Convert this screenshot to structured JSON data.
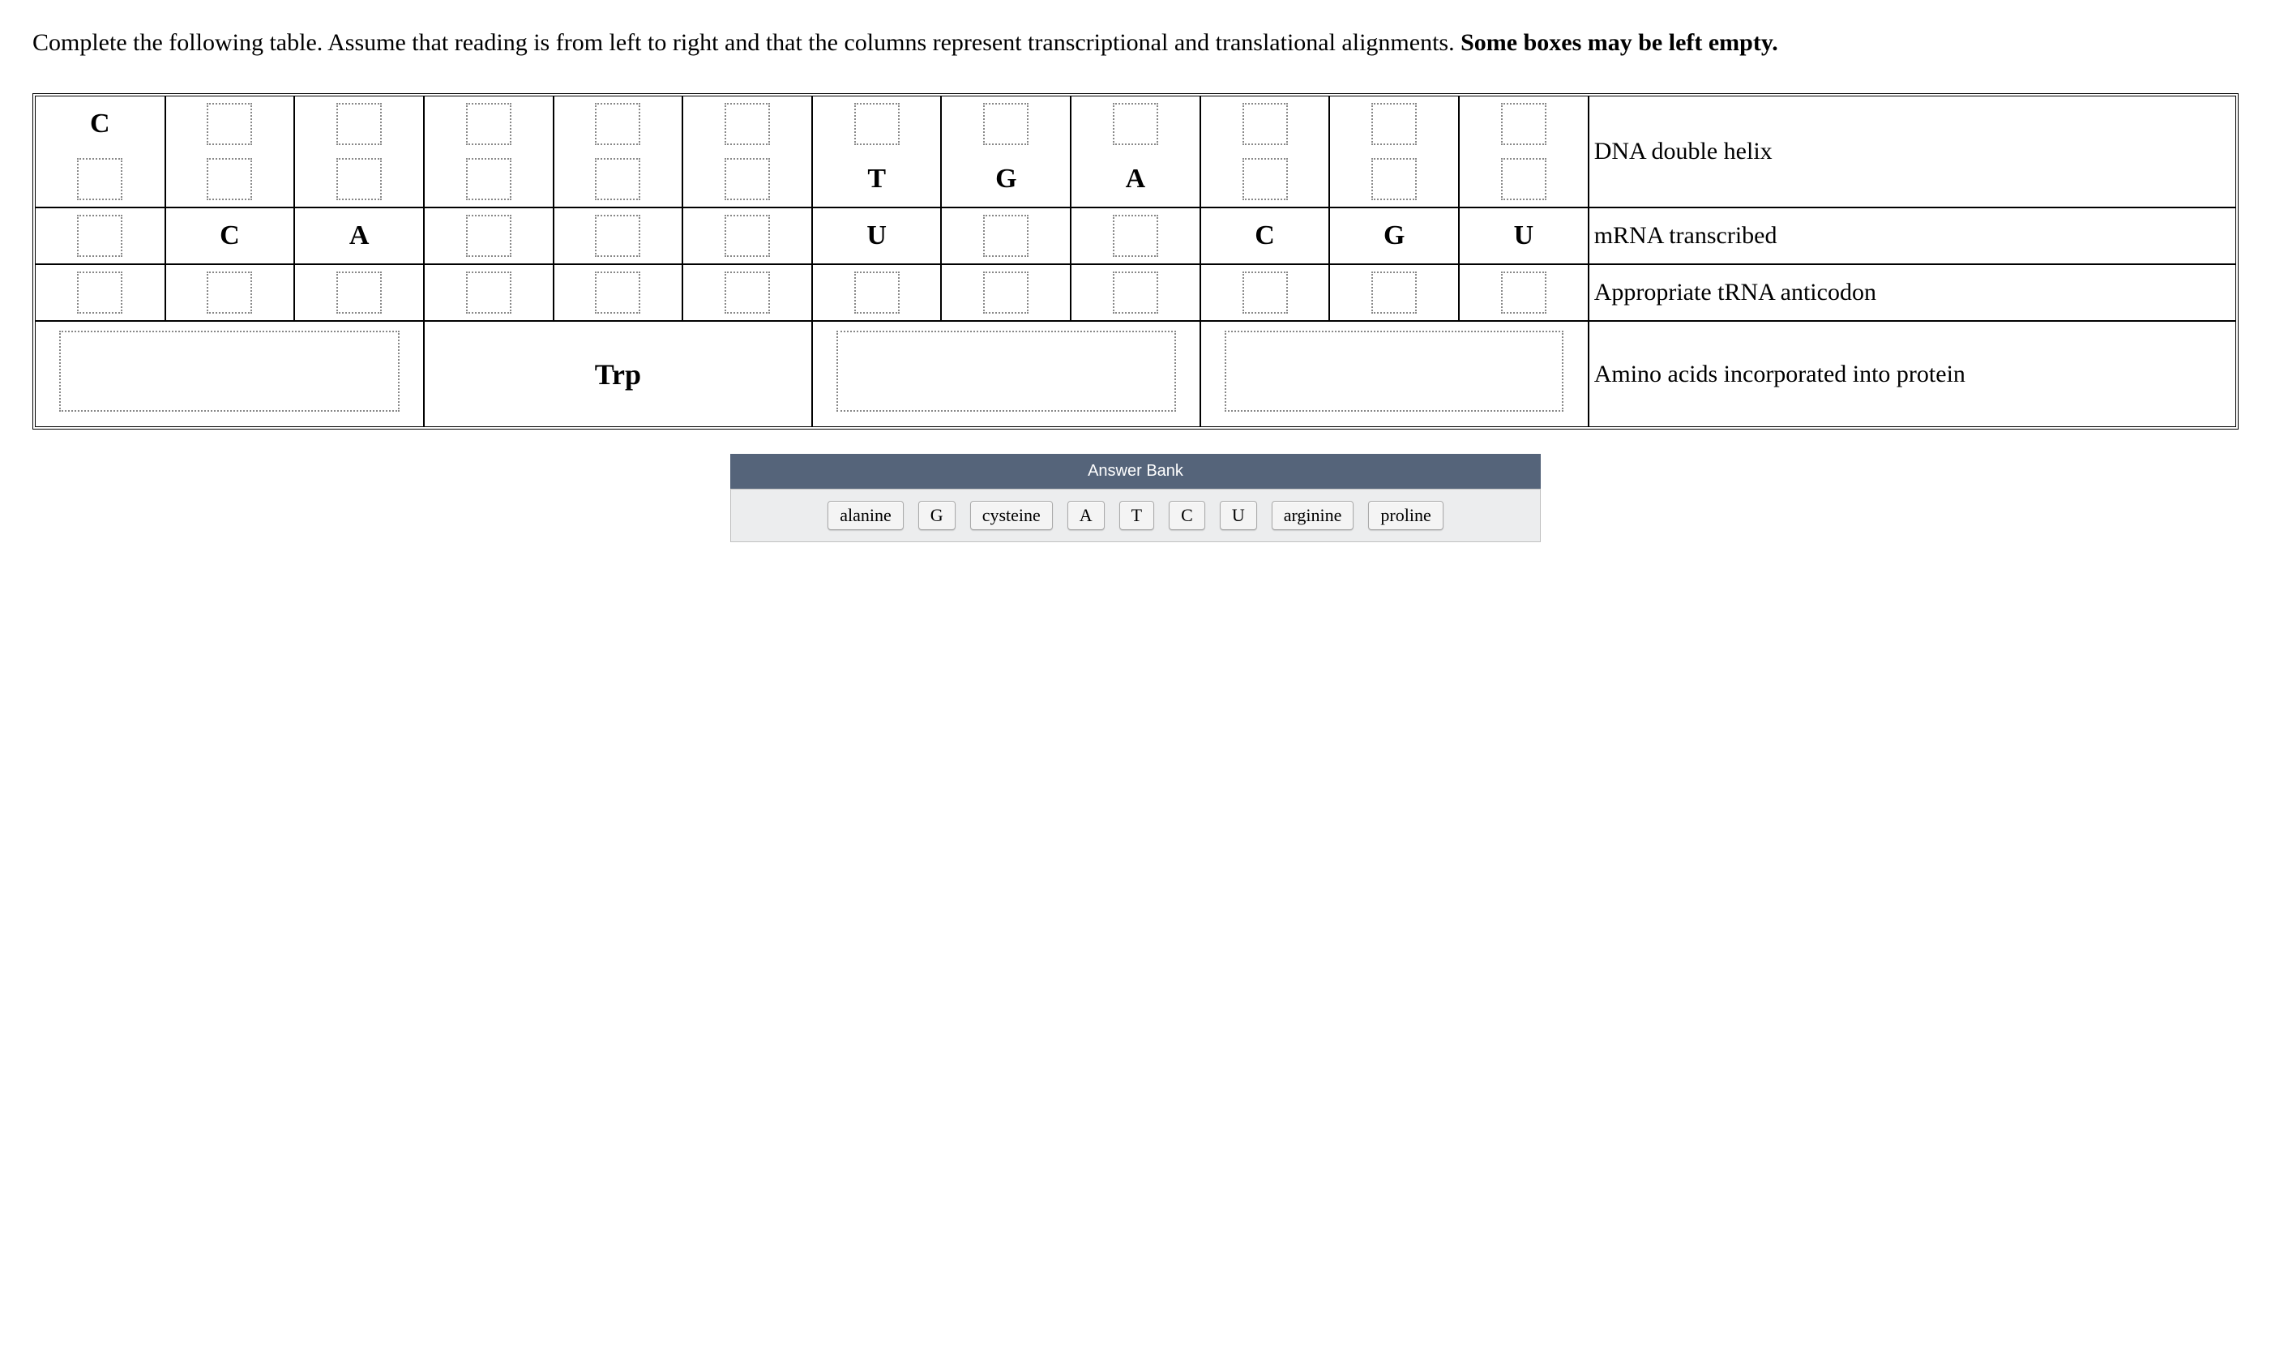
{
  "instruction": {
    "pre": "Complete the following table. Assume that reading is from left to right and that the columns represent transcriptional and translational alignments. ",
    "bold": "Some boxes may be left empty."
  },
  "rows": {
    "dna1": {
      "label": "DNA double helix",
      "cells": [
        "C",
        "",
        "",
        "",
        "",
        "",
        "",
        "",
        "",
        "",
        "",
        ""
      ],
      "fixedMask": [
        true,
        false,
        false,
        false,
        false,
        false,
        false,
        false,
        false,
        false,
        false,
        false
      ]
    },
    "dna2": {
      "label": "",
      "cells": [
        "",
        "",
        "",
        "",
        "",
        "",
        "T",
        "G",
        "A",
        "",
        "",
        ""
      ],
      "fixedMask": [
        false,
        false,
        false,
        false,
        false,
        false,
        true,
        true,
        true,
        false,
        false,
        false
      ]
    },
    "mrna": {
      "label": "mRNA transcribed",
      "cells": [
        "",
        "C",
        "A",
        "",
        "",
        "",
        "U",
        "",
        "",
        "C",
        "G",
        "U"
      ],
      "fixedMask": [
        false,
        true,
        true,
        false,
        false,
        false,
        true,
        false,
        false,
        true,
        true,
        true
      ]
    },
    "trna": {
      "label": "Appropriate tRNA anticodon",
      "cells": [
        "",
        "",
        "",
        "",
        "",
        "",
        "",
        "",
        "",
        "",
        "",
        ""
      ],
      "fixedMask": [
        false,
        false,
        false,
        false,
        false,
        false,
        false,
        false,
        false,
        false,
        false,
        false
      ]
    },
    "aa": {
      "label": "Amino acids incorporated into protein",
      "cells": [
        "",
        "Trp",
        "",
        ""
      ],
      "fixedMask": [
        false,
        true,
        false,
        false
      ]
    }
  },
  "bank": {
    "title": "Answer Bank",
    "items": [
      "alanine",
      "G",
      "cysteine",
      "A",
      "T",
      "C",
      "U",
      "arginine",
      "proline"
    ]
  }
}
